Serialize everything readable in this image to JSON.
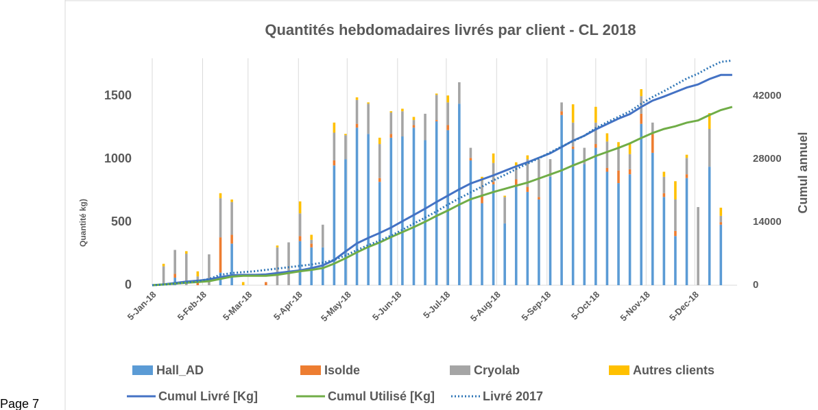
{
  "page_footer": "Page 7",
  "chart_data": {
    "type": "bar",
    "title": "Quantités hebdomadaires livrés par client - CL 2018",
    "y_label": "Quantité kg)",
    "y2_label": "Cumul annuel",
    "x": [
      "2018-01-05",
      "2018-01-12",
      "2018-01-19",
      "2018-01-26",
      "2018-02-02",
      "2018-02-09",
      "2018-02-16",
      "2018-02-23",
      "2018-03-02",
      "2018-03-09",
      "2018-03-16",
      "2018-03-23",
      "2018-03-30",
      "2018-04-06",
      "2018-04-13",
      "2018-04-20",
      "2018-04-27",
      "2018-05-04",
      "2018-05-11",
      "2018-05-18",
      "2018-05-25",
      "2018-06-01",
      "2018-06-08",
      "2018-06-15",
      "2018-06-22",
      "2018-06-29",
      "2018-07-06",
      "2018-07-13",
      "2018-07-20",
      "2018-07-27",
      "2018-08-03",
      "2018-08-10",
      "2018-08-17",
      "2018-08-24",
      "2018-08-31",
      "2018-09-07",
      "2018-09-14",
      "2018-09-21",
      "2018-09-28",
      "2018-10-05",
      "2018-10-12",
      "2018-10-19",
      "2018-10-26",
      "2018-11-02",
      "2018-11-09",
      "2018-11-16",
      "2018-11-23",
      "2018-11-30",
      "2018-12-07",
      "2018-12-14",
      "2018-12-21",
      "2018-12-28"
    ],
    "xlim": [
      "2018-01-05",
      "2018-12-31"
    ],
    "xticks": [
      {
        "value": "2018-01-05",
        "label": "5-Jan-18"
      },
      {
        "value": "2018-02-05",
        "label": "5-Feb-18"
      },
      {
        "value": "2018-03-05",
        "label": "5-Mar-18"
      },
      {
        "value": "2018-04-05",
        "label": "5-Apr-18"
      },
      {
        "value": "2018-05-05",
        "label": "5-May-18"
      },
      {
        "value": "2018-06-05",
        "label": "5-Jun-18"
      },
      {
        "value": "2018-07-05",
        "label": "5-Jul-18"
      },
      {
        "value": "2018-08-05",
        "label": "5-Aug-18"
      },
      {
        "value": "2018-09-05",
        "label": "5-Sep-18"
      },
      {
        "value": "2018-10-05",
        "label": "5-Oct-18"
      },
      {
        "value": "2018-11-05",
        "label": "5-Nov-18"
      },
      {
        "value": "2018-12-05",
        "label": "5-Dec-18"
      }
    ],
    "ylim": [
      0,
      1800
    ],
    "yticks": [
      0,
      500,
      1000,
      1500
    ],
    "y2lim": [
      0,
      50400
    ],
    "y2ticks": [
      0,
      14000,
      28000,
      42000
    ],
    "grid": true,
    "stacked": true,
    "series": [
      {
        "name": "Hall_AD",
        "color": "#5b9bd5",
        "values": [
          null,
          0,
          60,
          0,
          0,
          0,
          100,
          330,
          0,
          0,
          0,
          0,
          0,
          350,
          300,
          300,
          950,
          1000,
          1250,
          1200,
          820,
          1170,
          1180,
          1250,
          1150,
          1300,
          1230,
          1440,
          990,
          650,
          800,
          490,
          780,
          740,
          680,
          860,
          1350,
          1080,
          960,
          1090,
          900,
          810,
          880,
          1280,
          1050,
          700,
          390,
          850,
          0,
          940,
          480,
          null
        ]
      },
      {
        "name": "Isolde",
        "color": "#ed7d31",
        "values": [
          null,
          0,
          30,
          0,
          30,
          0,
          280,
          70,
          0,
          0,
          25,
          0,
          0,
          40,
          30,
          0,
          40,
          0,
          30,
          0,
          30,
          30,
          0,
          20,
          0,
          10,
          40,
          0,
          20,
          60,
          20,
          0,
          60,
          40,
          20,
          0,
          30,
          20,
          0,
          30,
          30,
          100,
          40,
          80,
          150,
          30,
          40,
          30,
          0,
          0,
          20,
          null
        ]
      },
      {
        "name": "Cryolab",
        "color": "#a5a5a5",
        "values": [
          null,
          150,
          190,
          250,
          40,
          245,
          310,
          260,
          0,
          0,
          0,
          300,
          340,
          180,
          30,
          180,
          220,
          190,
          190,
          240,
          270,
          170,
          200,
          40,
          210,
          200,
          180,
          170,
          80,
          120,
          150,
          210,
          110,
          220,
          300,
          140,
          70,
          190,
          130,
          170,
          210,
          180,
          120,
          140,
          90,
          130,
          250,
          130,
          620,
          300,
          50,
          null
        ]
      },
      {
        "name": "Autres clients",
        "color": "#ffc000",
        "values": [
          null,
          20,
          0,
          20,
          40,
          0,
          40,
          20,
          25,
          0,
          0,
          15,
          0,
          95,
          40,
          0,
          80,
          10,
          20,
          10,
          50,
          10,
          20,
          25,
          0,
          10,
          55,
          0,
          0,
          30,
          75,
          10,
          25,
          30,
          0,
          0,
          0,
          145,
          0,
          125,
          65,
          45,
          85,
          55,
          0,
          40,
          145,
          25,
          0,
          125,
          65,
          null
        ]
      },
      {
        "name": "Cumul Livré [Kg]",
        "type": "line",
        "axis": "y2",
        "color": "#4472c4",
        "values": [
          0,
          200,
          500,
          800,
          1000,
          1300,
          1800,
          2200,
          2300,
          2300,
          2400,
          2700,
          3000,
          3300,
          3800,
          4400,
          5600,
          7500,
          9300,
          10500,
          11600,
          12800,
          14200,
          15600,
          17000,
          18500,
          19900,
          21300,
          22600,
          23500,
          24400,
          25400,
          26400,
          27300,
          28300,
          29300,
          30700,
          32100,
          33200,
          34600,
          35800,
          37000,
          38000,
          39600,
          41000,
          41900,
          42900,
          43900,
          44600,
          45800,
          46700,
          46700
        ]
      },
      {
        "name": "Cumul Utilisé [Kg]",
        "type": "line",
        "axis": "y2",
        "color": "#70ad47",
        "values": [
          0,
          150,
          350,
          550,
          700,
          900,
          1400,
          1900,
          2100,
          2100,
          2100,
          2300,
          2700,
          3100,
          3400,
          3800,
          4800,
          6000,
          7300,
          8500,
          9500,
          10700,
          11800,
          12900,
          14100,
          15400,
          16600,
          17900,
          19100,
          19900,
          20700,
          21400,
          22100,
          22800,
          23700,
          24600,
          25500,
          26600,
          27600,
          28700,
          29600,
          30500,
          31500,
          32700,
          33800,
          34700,
          35300,
          36100,
          36600,
          37800,
          38900,
          39600
        ]
      },
      {
        "name": "Livré 2017",
        "type": "line",
        "axis": "y2",
        "dashed": true,
        "color": "#2e75b6",
        "values": [
          0,
          150,
          350,
          600,
          900,
          1400,
          2300,
          2700,
          2900,
          3100,
          3400,
          3700,
          4000,
          4300,
          4600,
          5000,
          5600,
          6600,
          7800,
          8900,
          9900,
          11000,
          12300,
          13700,
          15000,
          16400,
          17900,
          19300,
          20600,
          21900,
          23300,
          24500,
          25800,
          27000,
          28200,
          29500,
          30800,
          32000,
          33200,
          34900,
          36200,
          37400,
          38600,
          40300,
          41800,
          43100,
          44500,
          45900,
          47000,
          48400,
          49600,
          49900
        ]
      }
    ]
  }
}
